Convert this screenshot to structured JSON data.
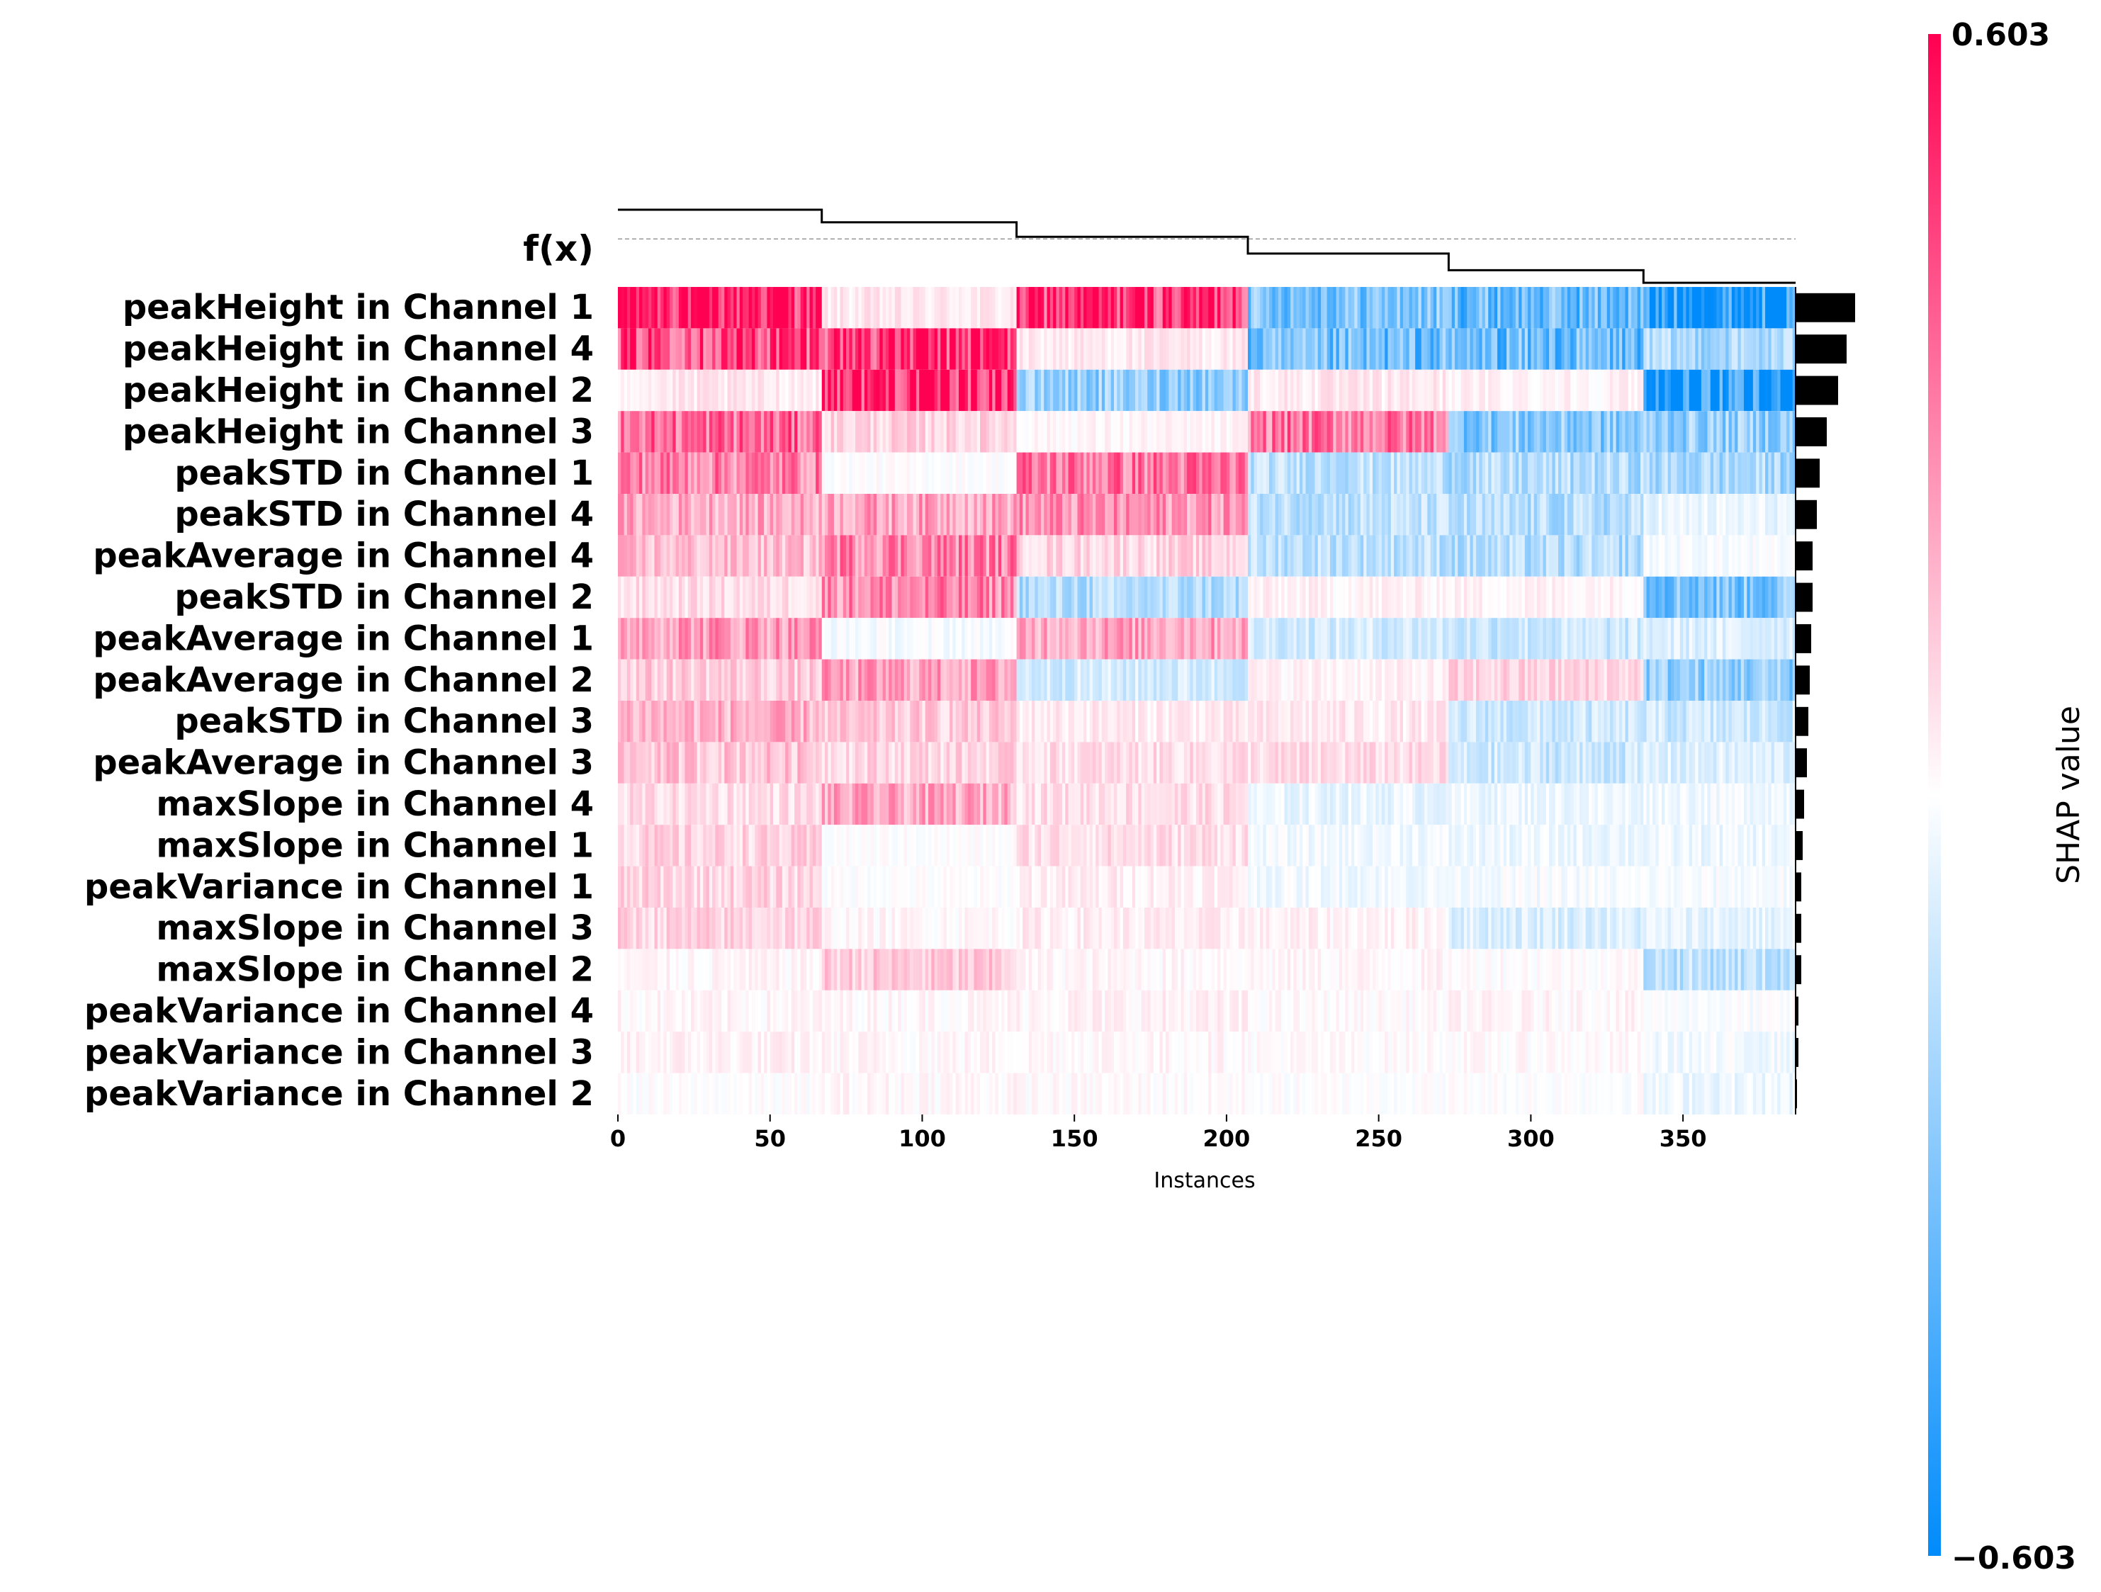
{
  "chart_data": {
    "type": "heatmap",
    "title": "",
    "fx_label": "f(x)",
    "xlabel": "Instances",
    "xlim": [
      0,
      387
    ],
    "x_ticks": [
      0,
      50,
      100,
      150,
      200,
      250,
      300,
      350
    ],
    "n_instances": 387,
    "features": [
      "peakHeight in Channel 1",
      "peakHeight in Channel 4",
      "peakHeight in Channel 2",
      "peakHeight in Channel 3",
      "peakSTD in Channel 1",
      "peakSTD in Channel 4",
      "peakAverage in Channel 4",
      "peakSTD in Channel 2",
      "peakAverage in Channel 1",
      "peakAverage in Channel 2",
      "peakSTD in Channel 3",
      "peakAverage in Channel 3",
      "maxSlope in Channel 4",
      "maxSlope in Channel 1",
      "peakVariance in Channel 1",
      "maxSlope in Channel 3",
      "maxSlope in Channel 2",
      "peakVariance in Channel 4",
      "peakVariance in Channel 3",
      "peakVariance in Channel 2"
    ],
    "segment_bounds": [
      0,
      67,
      131,
      207,
      273,
      337,
      387
    ],
    "segment_mean_shap": [
      [
        0.58,
        0.05,
        0.5,
        -0.3,
        -0.35,
        -0.55
      ],
      [
        0.45,
        0.5,
        0.05,
        -0.35,
        -0.35,
        -0.2
      ],
      [
        0.05,
        0.55,
        -0.25,
        0.05,
        0.03,
        -0.6
      ],
      [
        0.35,
        0.1,
        0.02,
        0.32,
        -0.28,
        -0.25
      ],
      [
        0.3,
        0.0,
        0.32,
        -0.15,
        -0.18,
        -0.2
      ],
      [
        0.2,
        0.22,
        0.25,
        -0.15,
        -0.18,
        -0.05
      ],
      [
        0.15,
        0.3,
        0.1,
        -0.15,
        -0.18,
        -0.02
      ],
      [
        0.08,
        0.28,
        -0.18,
        0.03,
        0.03,
        -0.3
      ],
      [
        0.25,
        -0.02,
        0.22,
        -0.1,
        -0.12,
        -0.08
      ],
      [
        0.12,
        0.22,
        -0.1,
        0.03,
        0.1,
        -0.25
      ],
      [
        0.18,
        0.12,
        0.05,
        0.05,
        -0.12,
        -0.12
      ],
      [
        0.14,
        0.1,
        0.08,
        0.08,
        -0.12,
        -0.08
      ],
      [
        0.08,
        0.2,
        0.08,
        -0.05,
        -0.04,
        -0.03
      ],
      [
        0.1,
        0.0,
        0.08,
        -0.03,
        -0.04,
        -0.04
      ],
      [
        0.1,
        0.0,
        0.04,
        -0.03,
        -0.02,
        -0.02
      ],
      [
        0.1,
        0.02,
        0.04,
        0.03,
        -0.08,
        -0.06
      ],
      [
        0.02,
        0.12,
        0.02,
        0.02,
        0.01,
        -0.15
      ],
      [
        0.02,
        0.02,
        0.03,
        0.01,
        0.02,
        -0.01
      ],
      [
        0.03,
        0.02,
        0.02,
        0.01,
        0.01,
        -0.03
      ],
      [
        0.0,
        0.02,
        0.01,
        0.0,
        0.0,
        -0.04
      ]
    ],
    "mean_abs_shap": [
      0.42,
      0.36,
      0.3,
      0.22,
      0.17,
      0.15,
      0.12,
      0.12,
      0.11,
      0.1,
      0.09,
      0.08,
      0.06,
      0.05,
      0.04,
      0.04,
      0.04,
      0.02,
      0.02,
      0.01
    ],
    "fx_step_values": [
      0.86,
      0.8,
      0.73,
      0.65,
      0.57,
      0.51
    ],
    "fx_base_value": 0.72,
    "colorbar": {
      "label": "SHAP value",
      "max_label": "0.603",
      "min_label": "−0.603",
      "vmin": -0.603,
      "vmax": 0.603,
      "high_color": "#ff0052",
      "low_color": "#008bfb",
      "mid_color": "#ffffff"
    },
    "grid": false
  }
}
